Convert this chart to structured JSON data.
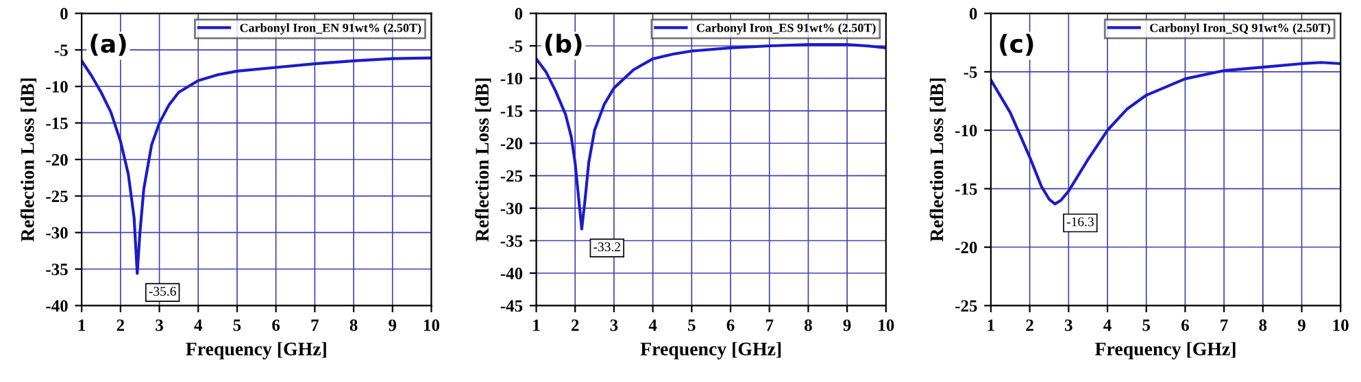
{
  "chart_data": [
    {
      "type": "line",
      "title": "(a)",
      "xlabel": "Frequency [GHz]",
      "ylabel": "Reflection Loss [dB]",
      "xlim": [
        1,
        10
      ],
      "xticks": [
        1,
        2,
        3,
        4,
        5,
        6,
        7,
        8,
        9,
        10
      ],
      "ylim": [
        -40,
        0
      ],
      "yticks": [
        -40,
        -35,
        -30,
        -25,
        -20,
        -15,
        -10,
        -5,
        0
      ],
      "grid": true,
      "legend": "top right",
      "marker": "none",
      "line_style": "solid",
      "annotations": [
        {
          "text": "-35.6",
          "x": 2.43,
          "y": -35.6
        }
      ],
      "series": [
        {
          "name": "Carbonyl Iron_EN 91wt% (2.50T)",
          "color": "#1c1cc8",
          "x": [
            1,
            1.25,
            1.5,
            1.75,
            2,
            2.2,
            2.35,
            2.43,
            2.5,
            2.6,
            2.8,
            3,
            3.25,
            3.5,
            4,
            4.5,
            5,
            6,
            7,
            8,
            9,
            10
          ],
          "values": [
            -6.5,
            -8.5,
            -10.8,
            -13.5,
            -17.5,
            -22,
            -28,
            -35.6,
            -30,
            -24,
            -18,
            -15,
            -12.5,
            -10.8,
            -9.2,
            -8.4,
            -7.9,
            -7.4,
            -6.9,
            -6.5,
            -6.2,
            -6.1
          ]
        }
      ]
    },
    {
      "type": "line",
      "title": "(b)",
      "xlabel": "Frequency [GHz]",
      "ylabel": "Reflection Loss [dB]",
      "xlim": [
        1,
        10
      ],
      "xticks": [
        1,
        2,
        3,
        4,
        5,
        6,
        7,
        8,
        9,
        10
      ],
      "ylim": [
        -45,
        0
      ],
      "yticks": [
        -45,
        -40,
        -35,
        -30,
        -25,
        -20,
        -15,
        -10,
        -5,
        0
      ],
      "grid": true,
      "legend": "top right",
      "marker": "none",
      "line_style": "solid",
      "annotations": [
        {
          "text": "-33.2",
          "x": 2.17,
          "y": -33.2
        }
      ],
      "series": [
        {
          "name": "Carbonyl Iron_ES 91wt% (2.50T)",
          "color": "#1c1cc8",
          "x": [
            1,
            1.25,
            1.5,
            1.75,
            1.9,
            2,
            2.1,
            2.17,
            2.25,
            2.35,
            2.5,
            2.75,
            3,
            3.5,
            4,
            4.5,
            5,
            6,
            7,
            8,
            9,
            9.5,
            10
          ],
          "values": [
            -7,
            -9,
            -12,
            -15.5,
            -19,
            -23,
            -29,
            -33.2,
            -29,
            -23,
            -18,
            -14,
            -11.5,
            -8.7,
            -7,
            -6.3,
            -5.8,
            -5.3,
            -5,
            -4.8,
            -4.8,
            -5,
            -5.3
          ]
        }
      ]
    },
    {
      "type": "line",
      "title": "(c)",
      "xlabel": "Frequency [GHz]",
      "ylabel": "Reflection Loss [dB]",
      "xlim": [
        1,
        10
      ],
      "xticks": [
        1,
        2,
        3,
        4,
        5,
        6,
        7,
        8,
        9,
        10
      ],
      "ylim": [
        -25,
        0
      ],
      "yticks": [
        -25,
        -20,
        -15,
        -10,
        -5,
        0
      ],
      "grid": true,
      "legend": "top right",
      "marker": "none",
      "line_style": "solid",
      "annotations": [
        {
          "text": "-16.3",
          "x": 2.65,
          "y": -16.3
        }
      ],
      "series": [
        {
          "name": "Carbonyl Iron_SQ 91wt% (2.50T)",
          "color": "#1c1cc8",
          "x": [
            1,
            1.5,
            2,
            2.3,
            2.5,
            2.65,
            2.8,
            3,
            3.5,
            4,
            4.5,
            5,
            6,
            7,
            8,
            9,
            9.5,
            10
          ],
          "values": [
            -5.7,
            -8.5,
            -12.3,
            -14.8,
            -15.9,
            -16.3,
            -16,
            -15.2,
            -12.5,
            -10,
            -8.2,
            -7,
            -5.6,
            -4.9,
            -4.6,
            -4.3,
            -4.2,
            -4.3
          ]
        }
      ]
    }
  ]
}
